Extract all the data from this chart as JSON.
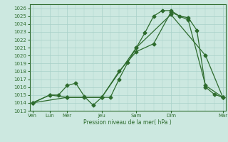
{
  "title": "Pression niveau de la mer( hPa )",
  "bg_color": "#cce8e0",
  "grid_color": "#a8d0c8",
  "line_color": "#2d6b2d",
  "ylim": [
    1013,
    1026.5
  ],
  "yticks": [
    1013,
    1014,
    1015,
    1016,
    1017,
    1018,
    1019,
    1020,
    1021,
    1022,
    1023,
    1024,
    1025,
    1026
  ],
  "xtick_positions": [
    0,
    24,
    48,
    96,
    144,
    192,
    264
  ],
  "xtick_labels": [
    "Ven",
    "Lun",
    "Mer",
    "Jeu",
    "Sam",
    "Dim",
    "Mar"
  ],
  "xlim": [
    -4,
    268
  ],
  "series1_x": [
    0,
    24,
    36,
    48,
    60,
    72,
    84,
    96,
    108,
    120,
    132,
    144,
    156,
    168,
    180,
    192,
    204,
    216,
    228,
    240,
    252,
    264
  ],
  "series1_y": [
    1014.0,
    1015.0,
    1015.0,
    1016.2,
    1016.5,
    1014.8,
    1013.7,
    1014.7,
    1014.7,
    1017.0,
    1019.1,
    1021.0,
    1022.9,
    1025.0,
    1025.7,
    1025.7,
    1025.0,
    1024.8,
    1023.2,
    1016.0,
    1015.1,
    1014.7
  ],
  "series2_x": [
    0,
    24,
    48,
    72,
    96,
    120,
    144,
    168,
    192,
    216,
    240,
    264
  ],
  "series2_y": [
    1014.0,
    1015.0,
    1014.7,
    1014.7,
    1014.7,
    1018.0,
    1020.5,
    1021.5,
    1025.5,
    1024.5,
    1016.2,
    1014.7
  ],
  "series3_x": [
    0,
    48,
    96,
    144,
    192,
    240,
    264
  ],
  "series3_y": [
    1014.0,
    1014.7,
    1014.7,
    1021.0,
    1025.2,
    1020.0,
    1014.7
  ],
  "marker_size": 2.5,
  "line_width": 0.9
}
